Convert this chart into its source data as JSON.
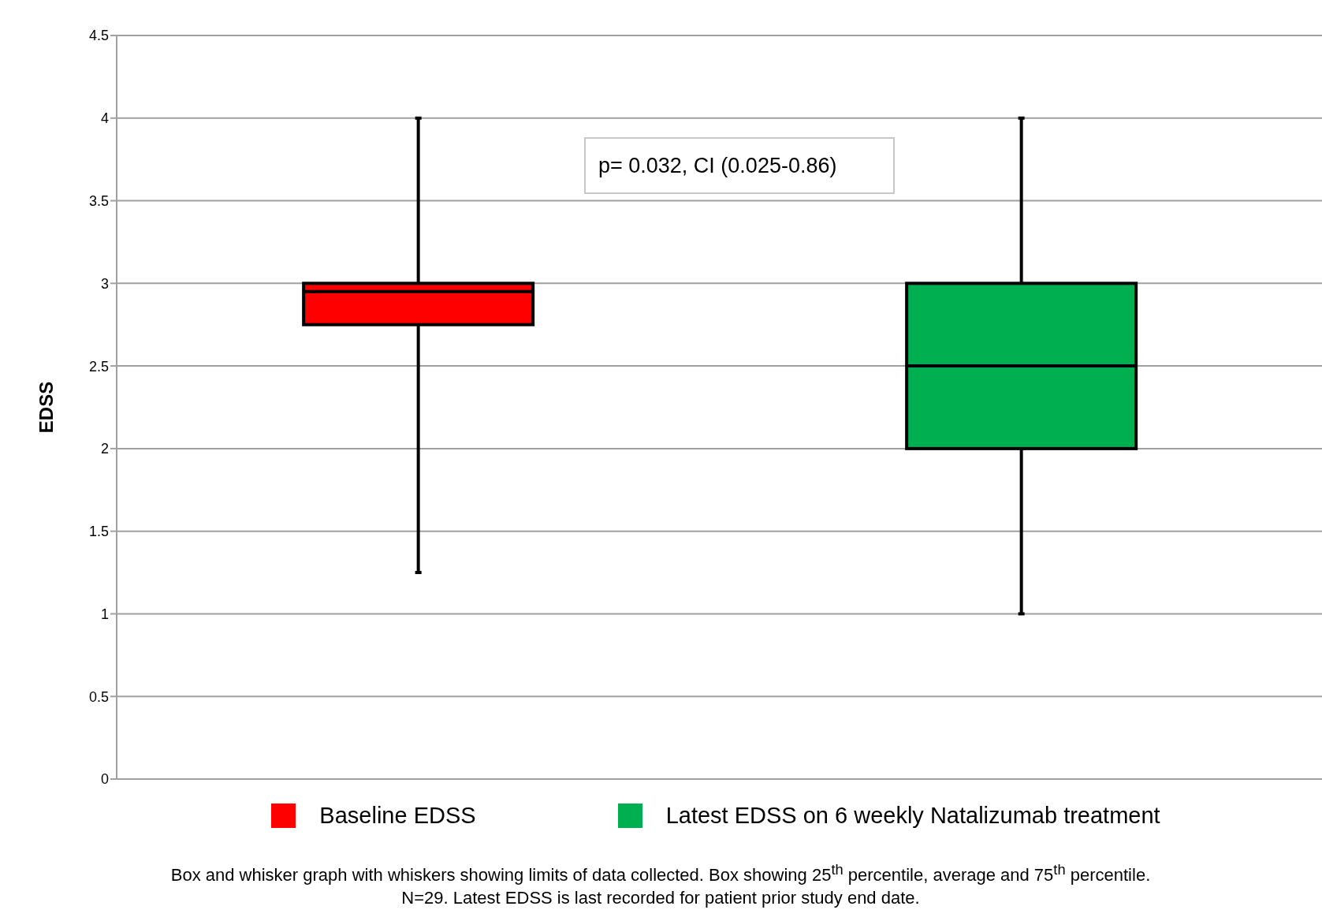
{
  "chart_data": {
    "type": "box",
    "ylabel": "EDSS",
    "categories": [
      null,
      null
    ],
    "series": [
      {
        "name": "Baseline EDSS",
        "color": "#ff0000",
        "boxes": [
          {
            "low": 1.25,
            "q1": 2.75,
            "median": 2.95,
            "q3": 3,
            "high": 4
          },
          null
        ]
      },
      {
        "name": "Latest EDSS on 6 weekly Natalizumab treatment",
        "color": "#00b050",
        "boxes": [
          null,
          {
            "low": 1,
            "q1": 2,
            "median": 2.5,
            "q3": 3,
            "high": 4
          }
        ]
      }
    ],
    "ylim": [
      0,
      4.5
    ],
    "yticks": [
      0,
      0.5,
      1,
      1.5,
      2,
      2.5,
      3,
      3.5,
      4,
      4.5
    ],
    "grid": "y",
    "legend": "bottom",
    "annotations": [
      "p= 0.032, CI (0.025-0.86)",
      "Box and whisker graph with whiskers showing limits of data collected. Box showing 25$^{th}$ percentile, average and 75$^{th}$ percentile.\nN=29. Latest EDSS is last recorded for patient prior study end date."
    ]
  }
}
